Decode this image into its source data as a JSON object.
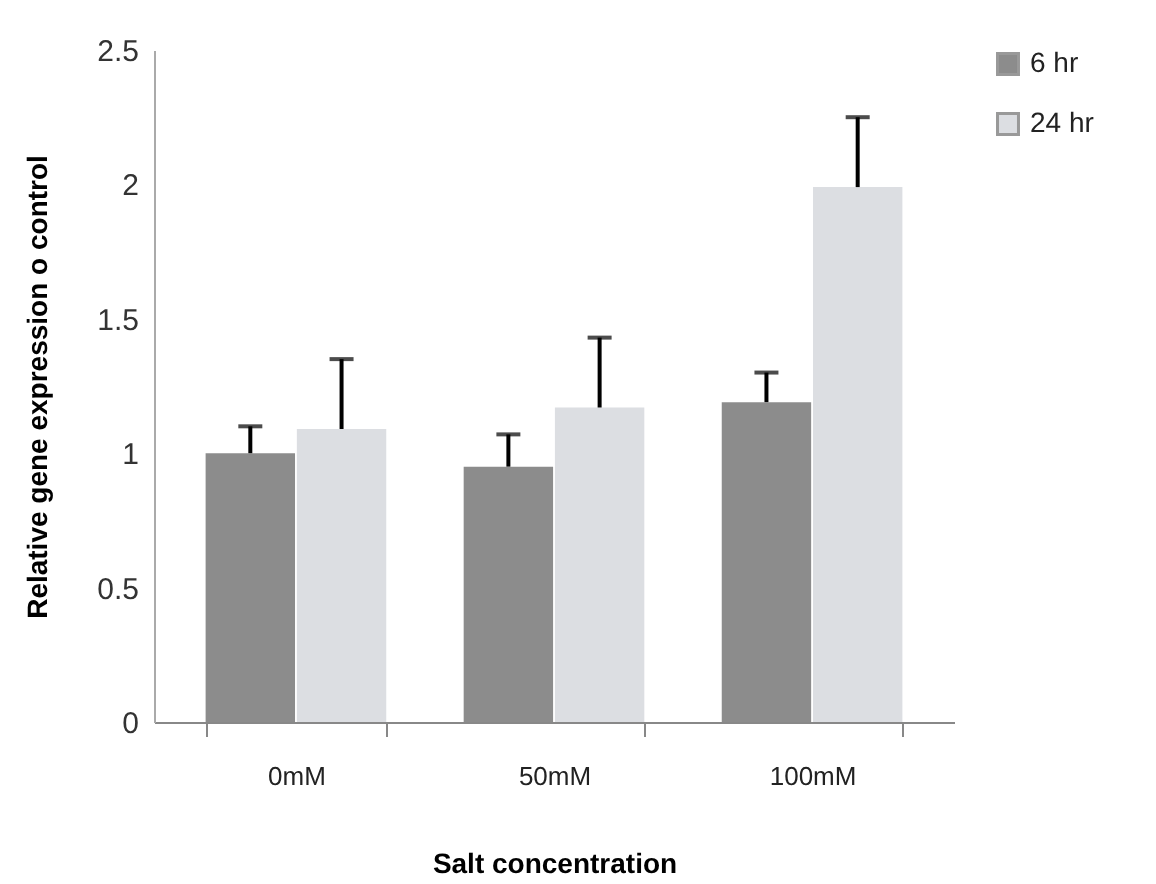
{
  "chart_data": {
    "type": "bar",
    "xlabel": "Salt concentration",
    "ylabel": "Relative gene expression o control",
    "categories": [
      "0mM",
      "50mM",
      "100mM"
    ],
    "series": [
      {
        "name": "6 hr",
        "color": "#8c8c8c",
        "values": [
          1.0,
          0.95,
          1.19
        ],
        "errors": [
          [
            1.0,
            1.1
          ],
          [
            0.95,
            1.07
          ],
          [
            1.19,
            1.3
          ]
        ]
      },
      {
        "name": "24 hr",
        "color": "#dcdee2",
        "values": [
          1.09,
          1.17,
          1.99
        ],
        "errors": [
          [
            1.09,
            1.35
          ],
          [
            1.17,
            1.43
          ],
          [
            1.99,
            2.25
          ]
        ]
      }
    ],
    "ylim": [
      0,
      2.5
    ],
    "yticks": [
      0,
      0.5,
      1,
      1.5,
      2,
      2.5
    ],
    "legend": "right"
  }
}
